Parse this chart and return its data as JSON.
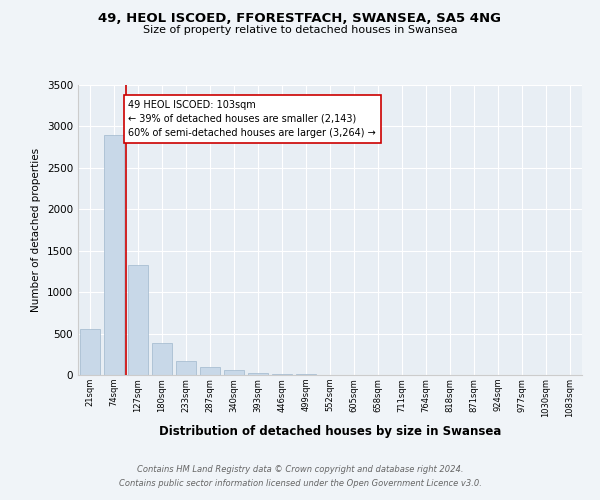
{
  "title1": "49, HEOL ISCOED, FFORESTFACH, SWANSEA, SA5 4NG",
  "title2": "Size of property relative to detached houses in Swansea",
  "xlabel": "Distribution of detached houses by size in Swansea",
  "ylabel": "Number of detached properties",
  "footer": "Contains HM Land Registry data © Crown copyright and database right 2024.\nContains public sector information licensed under the Open Government Licence v3.0.",
  "categories": [
    "21sqm",
    "74sqm",
    "127sqm",
    "180sqm",
    "233sqm",
    "287sqm",
    "340sqm",
    "393sqm",
    "446sqm",
    "499sqm",
    "552sqm",
    "605sqm",
    "658sqm",
    "711sqm",
    "764sqm",
    "818sqm",
    "871sqm",
    "924sqm",
    "977sqm",
    "1030sqm",
    "1083sqm"
  ],
  "values": [
    550,
    2900,
    1330,
    390,
    175,
    95,
    55,
    30,
    18,
    10,
    5,
    3,
    2,
    1,
    1,
    1,
    0,
    0,
    0,
    0,
    0
  ],
  "bar_color": "#c8d8e8",
  "bar_edge_color": "#a0b8cc",
  "property_line_color": "#cc0000",
  "annotation_text": "49 HEOL ISCOED: 103sqm\n← 39% of detached houses are smaller (2,143)\n60% of semi-detached houses are larger (3,264) →",
  "annotation_box_color": "#ffffff",
  "annotation_box_edge": "#cc0000",
  "ylim": [
    0,
    3500
  ],
  "yticks": [
    0,
    500,
    1000,
    1500,
    2000,
    2500,
    3000,
    3500
  ],
  "bg_color": "#f0f4f8",
  "plot_bg_color": "#e8eef4",
  "grid_color": "#ffffff"
}
